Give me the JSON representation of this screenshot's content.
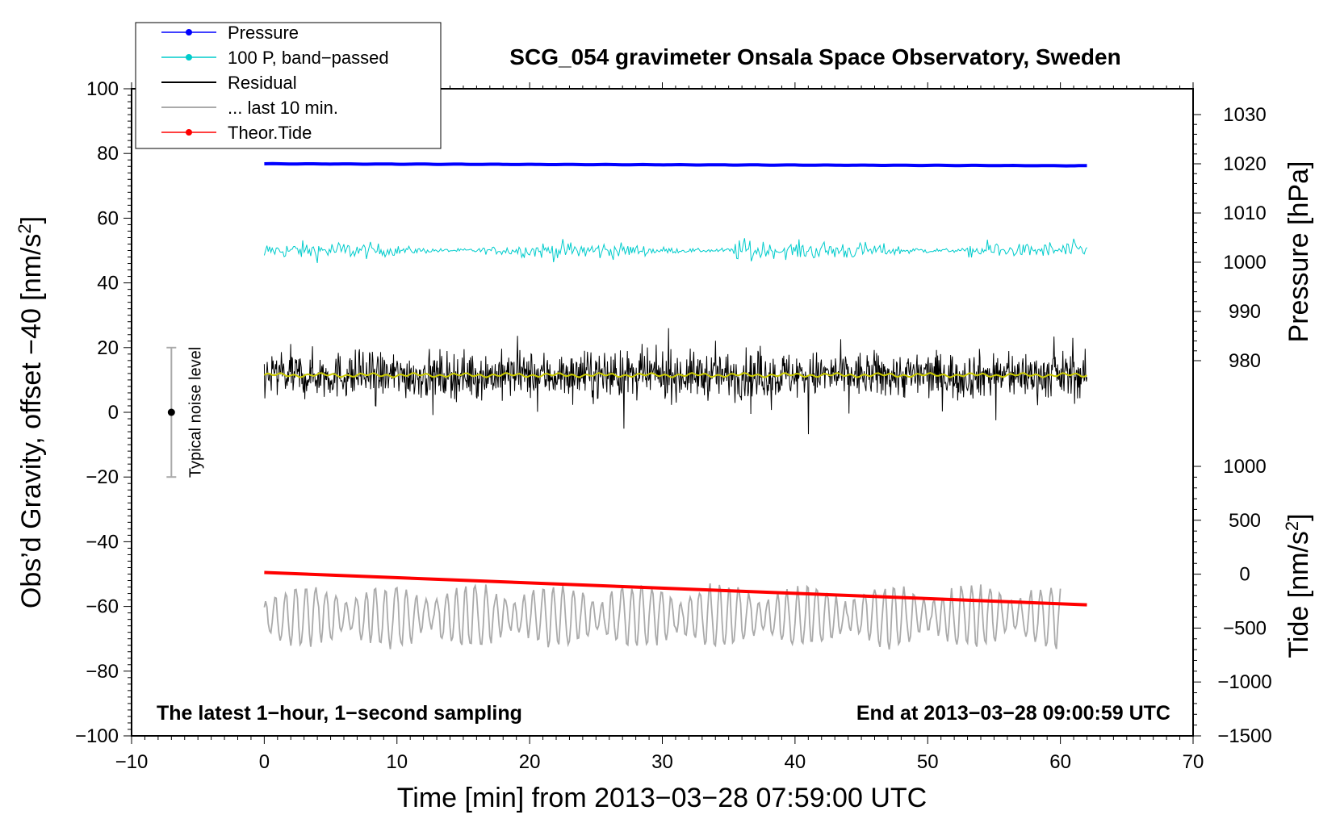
{
  "chart_data": {
    "type": "line",
    "title": "SCG_054 gravimeter Onsala Space Observatory, Sweden",
    "xlabel": "Time [min] from 2013−03−28 07:59:00 UTC",
    "ylabel": "Obs’d Gravity, offset −40 [nm/s",
    "ylabel_sup": "2",
    "ylabel_end": "]",
    "y2_label": "Pressure [hPa]",
    "y3_label": "Tide [nm/s",
    "y3_label_sup": "2",
    "y3_label_end": "]",
    "xlim": [
      -10,
      70
    ],
    "ylim": [
      -100,
      100
    ],
    "pressure_lim": [
      964.5,
      1035
    ],
    "tide_lim": [
      -1500,
      1000
    ],
    "x_ticks": [
      {
        "v": -10,
        "label": "−10"
      },
      {
        "v": 0,
        "label": "0"
      },
      {
        "v": 10,
        "label": "10"
      },
      {
        "v": 20,
        "label": "20"
      },
      {
        "v": 30,
        "label": "30"
      },
      {
        "v": 40,
        "label": "40"
      },
      {
        "v": 50,
        "label": "50"
      },
      {
        "v": 60,
        "label": "60"
      },
      {
        "v": 70,
        "label": "70"
      }
    ],
    "y_ticks": [
      {
        "v": 100,
        "label": "100"
      },
      {
        "v": 80,
        "label": "80"
      },
      {
        "v": 60,
        "label": "60"
      },
      {
        "v": 40,
        "label": "40"
      },
      {
        "v": 20,
        "label": "20"
      },
      {
        "v": 0,
        "label": "0"
      },
      {
        "v": -20,
        "label": "−20"
      },
      {
        "v": -40,
        "label": "−40"
      },
      {
        "v": -60,
        "label": "−60"
      },
      {
        "v": -80,
        "label": "−80"
      },
      {
        "v": -100,
        "label": "−100"
      }
    ],
    "pressure_ticks": [
      {
        "v": 1030,
        "label": "1030"
      },
      {
        "v": 1020,
        "label": "1020"
      },
      {
        "v": 1010,
        "label": "1010"
      },
      {
        "v": 1000,
        "label": "1000"
      },
      {
        "v": 990,
        "label": "990"
      },
      {
        "v": 980,
        "label": "980"
      }
    ],
    "tide_ticks": [
      {
        "v": 1000,
        "label": "1000"
      },
      {
        "v": 500,
        "label": "500"
      },
      {
        "v": 0,
        "label": "0"
      },
      {
        "v": -500,
        "label": "−500"
      },
      {
        "v": -1000,
        "label": "−1000"
      },
      {
        "v": -1500,
        "label": "−1500"
      }
    ],
    "series": [
      {
        "name": "Pressure",
        "color": "#0000ff",
        "axis": "pressure",
        "x_range": [
          0,
          62
        ],
        "start": 1020.0,
        "end": 1019.6
      },
      {
        "name": "100 P, band−passed",
        "color": "#00cccc",
        "axis": "gravity",
        "x_range": [
          0,
          62
        ],
        "center": 50,
        "amplitude": 2.5
      },
      {
        "name": "Residual",
        "color": "#000000",
        "axis": "gravity",
        "x_range": [
          0,
          62
        ],
        "center": 11.5,
        "amplitude": 8
      },
      {
        "name": "... last 10 min.",
        "color": "#aaaaaa",
        "axis": "gravity",
        "x_range": [
          0,
          60
        ],
        "center": -63,
        "amplitude": 8
      },
      {
        "name": "Theor.Tide",
        "color": "#ff0000",
        "axis": "gravity",
        "x_range": [
          0,
          62
        ],
        "start": -49.5,
        "end": -59.5
      },
      {
        "name": "Residual smoothed",
        "color": "#cccc00",
        "axis": "gravity",
        "x_range": [
          0,
          62
        ],
        "center": 11.5
      }
    ],
    "noise_bar": {
      "label": "Typical noise level",
      "x": -7,
      "center": 0,
      "low": -20,
      "high": 20
    },
    "annotation_left": "The latest 1−hour, 1−second sampling",
    "annotation_right": "End at 2013−03−28 09:00:59 UTC",
    "legend": [
      "Pressure",
      "100 P, band−passed",
      "Residual",
      "... last 10 min.",
      "Theor.Tide"
    ]
  }
}
